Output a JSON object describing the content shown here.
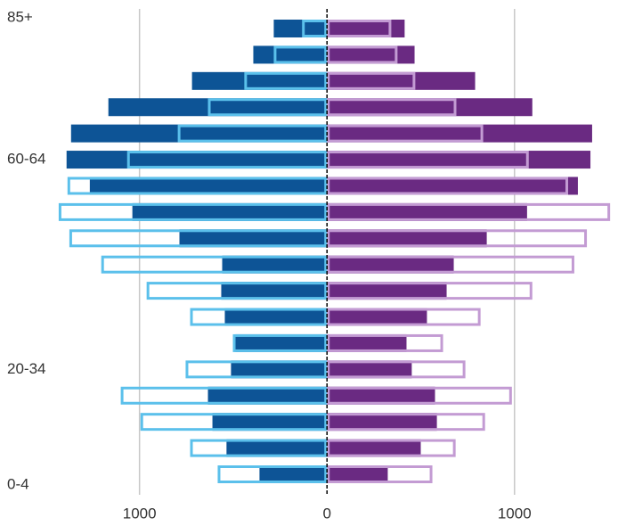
{
  "chart_data": {
    "type": "pyramid",
    "categories": [
      "0-4",
      null,
      null,
      null,
      "20-34",
      null,
      null,
      null,
      null,
      null,
      null,
      null,
      "60-64",
      null,
      null,
      null,
      null,
      "85+"
    ],
    "series": [
      {
        "color": "#0d5496",
        "outline": false,
        "values": [
          -360,
          -536,
          -611,
          -635,
          -512,
          -488,
          -545,
          -564,
          -559,
          -787,
          -1038,
          -1265,
          -1389,
          -1365,
          -1166,
          -720,
          -393,
          -284
        ]
      },
      {
        "color": "#6a2a82",
        "outline": false,
        "values": [
          324,
          500,
          586,
          576,
          452,
          424,
          533,
          638,
          676,
          852,
          1067,
          1338,
          1405,
          1414,
          1095,
          790,
          467,
          414
        ]
      },
      {
        "color": "#5bc0eb",
        "outline": true,
        "values": [
          -583,
          -730,
          -995,
          -1100,
          -754,
          -502,
          -730,
          -962,
          -1204,
          -1374,
          -1431,
          -1384,
          -1066,
          -796,
          -635,
          -441,
          -284,
          -133
        ]
      },
      {
        "color": "#c39bd3",
        "outline": true,
        "values": [
          562,
          686,
          843,
          986,
          738,
          619,
          819,
          1095,
          1319,
          1386,
          1510,
          1286,
          1076,
          833,
          690,
          471,
          376,
          343
        ]
      }
    ],
    "xlim": [
      -1744,
      1552
    ],
    "xticks": [
      {
        "value": -1000,
        "label": "1000"
      },
      0,
      {
        "value": 1000,
        "label": "1000"
      }
    ],
    "grid": true
  }
}
